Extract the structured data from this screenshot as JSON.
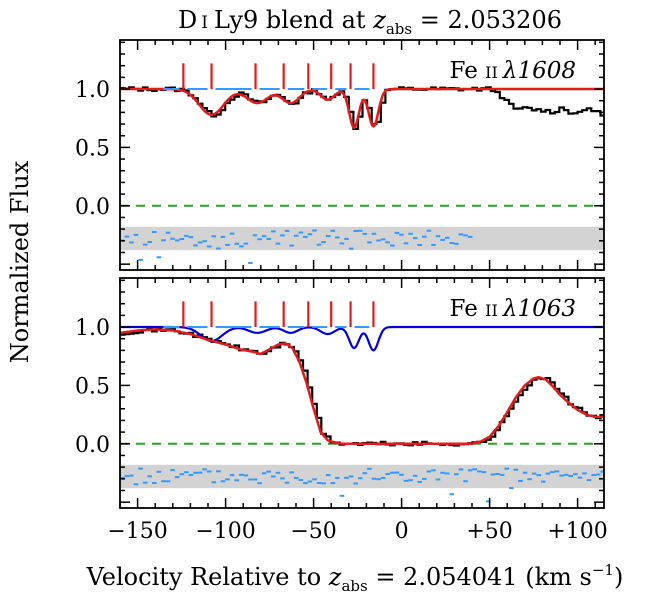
{
  "figure": {
    "title": "D I Ly9 blend at z_abs = 2.053206",
    "xlabel": "Velocity Relative to z_abs = 2.054041 (km s^-1)",
    "ylabel": "Normalized Flux",
    "colors": {
      "data": "#000000",
      "fit": "#e41a1c",
      "unblended": "#0000dd",
      "residual": "#3399ff",
      "zero_line": "#2ca02c",
      "band": "#d3d3d3",
      "tick_marks": "#e41a1c",
      "components": "#3399ff"
    }
  },
  "chart_data": [
    {
      "type": "line",
      "panel": "top",
      "label": "Fe II λ1608",
      "xlim": [
        -160,
        115
      ],
      "ylim": [
        -0.55,
        1.42
      ],
      "xticks": [
        -150,
        -100,
        -50,
        0,
        50,
        100
      ],
      "xtick_labels": [
        "−150",
        "−100",
        "−50",
        "0",
        "+50",
        "+100"
      ],
      "yticks": [
        0.0,
        0.5,
        1.0
      ],
      "ytick_labels": [
        "0.0",
        "0.5",
        "1.0"
      ],
      "zero_line": 0.0,
      "residual_band": [
        -0.38,
        -0.18
      ],
      "component_velocities": [
        -124,
        -108,
        -83,
        -67,
        -53,
        -40,
        -29,
        -16
      ],
      "fit_features": [
        {
          "v": -108,
          "depth": 0.22,
          "sigma": 7
        },
        {
          "v": -82,
          "depth": 0.12,
          "sigma": 6
        },
        {
          "v": -63,
          "depth": 0.12,
          "sigma": 5
        },
        {
          "v": -42,
          "depth": 0.09,
          "sigma": 4
        },
        {
          "v": -27,
          "depth": 0.33,
          "sigma": 2.8
        },
        {
          "v": -16,
          "depth": 0.32,
          "sigma": 2.8
        }
      ],
      "data_tail": {
        "v": [
          50,
          55,
          60,
          65,
          70,
          75,
          80,
          85,
          90,
          95,
          100,
          105,
          110,
          115
        ],
        "flux": [
          1.0,
          0.95,
          0.87,
          0.82,
          0.84,
          0.82,
          0.82,
          0.8,
          0.84,
          0.8,
          0.79,
          0.84,
          0.8,
          0.78
        ]
      }
    },
    {
      "type": "line",
      "panel": "bottom",
      "label": "Fe II λ1063",
      "xlim": [
        -160,
        115
      ],
      "ylim": [
        -0.55,
        1.42
      ],
      "xticks": [
        -150,
        -100,
        -50,
        0,
        50,
        100
      ],
      "xtick_labels": [
        "−150",
        "−100",
        "−50",
        "0",
        "+50",
        "+100"
      ],
      "yticks": [
        0.0,
        0.5,
        1.0
      ],
      "ytick_labels": [
        "0.0",
        "0.5",
        "1.0"
      ],
      "zero_line": 0.0,
      "residual_band": [
        -0.38,
        -0.18
      ],
      "component_velocities": [
        -124,
        -108,
        -83,
        -67,
        -53,
        -40,
        -29,
        -16
      ],
      "fit_curve": {
        "v": [
          -160,
          -150,
          -140,
          -130,
          -120,
          -110,
          -100,
          -92,
          -85,
          -80,
          -75,
          -70,
          -66,
          -62,
          -58,
          -54,
          -50,
          -46,
          -42,
          -38,
          -34,
          -30,
          -20,
          -10,
          0,
          10,
          20,
          30,
          40,
          45,
          50,
          55,
          60,
          65,
          70,
          75,
          78,
          82,
          86,
          90,
          95,
          100,
          105,
          110,
          115
        ],
        "flux": [
          0.95,
          0.97,
          0.98,
          0.97,
          0.94,
          0.89,
          0.85,
          0.81,
          0.79,
          0.77,
          0.81,
          0.85,
          0.86,
          0.82,
          0.7,
          0.52,
          0.3,
          0.1,
          0.03,
          0.01,
          0.0,
          0.0,
          0.0,
          0.0,
          0.0,
          0.0,
          0.0,
          0.0,
          0.0,
          0.02,
          0.06,
          0.15,
          0.27,
          0.4,
          0.5,
          0.56,
          0.57,
          0.55,
          0.49,
          0.42,
          0.35,
          0.29,
          0.25,
          0.23,
          0.23
        ]
      },
      "unblended_features": [
        {
          "v": -108,
          "depth": 0.12,
          "sigma": 6
        },
        {
          "v": -82,
          "depth": 0.05,
          "sigma": 5
        },
        {
          "v": -63,
          "depth": 0.05,
          "sigma": 4
        },
        {
          "v": -42,
          "depth": 0.06,
          "sigma": 4
        },
        {
          "v": -27,
          "depth": 0.18,
          "sigma": 2.8
        },
        {
          "v": -16,
          "depth": 0.2,
          "sigma": 2.8
        }
      ]
    }
  ]
}
